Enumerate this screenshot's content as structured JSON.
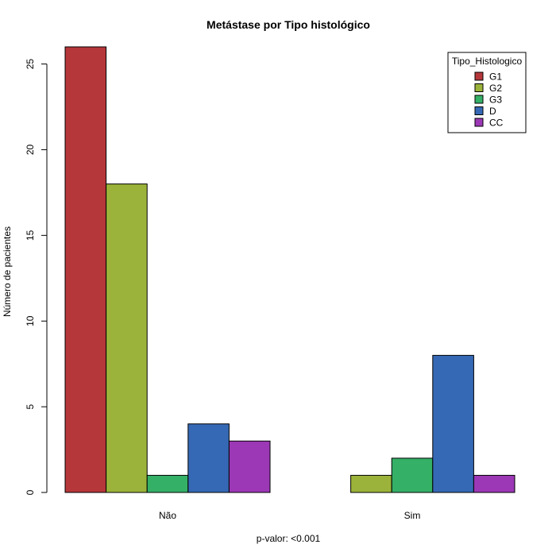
{
  "chart_data": {
    "type": "bar",
    "title": "Metástase por Tipo histológico",
    "xlabel": "p-valor: <0.001",
    "ylabel": "Número de pacientes",
    "categories": [
      "Não",
      "Sim"
    ],
    "ylim": [
      0,
      26
    ],
    "yticks": [
      0,
      5,
      10,
      15,
      20,
      25
    ],
    "legend": {
      "title": "Tipo_Histologico",
      "position": "top-right"
    },
    "series": [
      {
        "name": "G1",
        "color": "#B5373A",
        "values": [
          26,
          0
        ]
      },
      {
        "name": "G2",
        "color": "#9BB33A",
        "values": [
          18,
          1
        ]
      },
      {
        "name": "G3",
        "color": "#35B067",
        "values": [
          1,
          2
        ]
      },
      {
        "name": "D",
        "color": "#3669B5",
        "values": [
          4,
          8
        ]
      },
      {
        "name": "CC",
        "color": "#9C38B5",
        "values": [
          3,
          1
        ]
      }
    ],
    "grid": false
  }
}
